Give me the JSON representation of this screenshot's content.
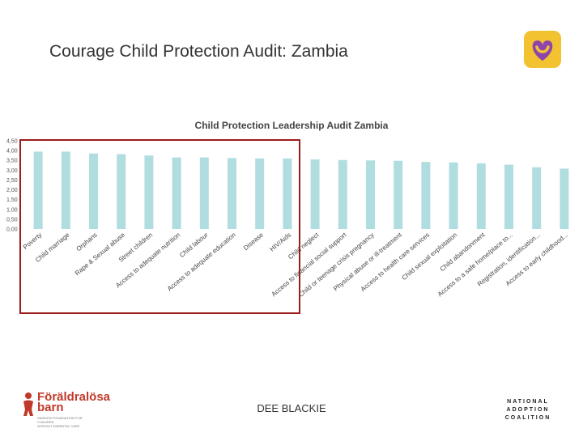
{
  "slide": {
    "title": "Courage Child Protection Audit: Zambia",
    "footer_text": "DEE BLACKIE"
  },
  "logos": {
    "top_right": {
      "icon": "heart-logo-icon",
      "background": "#f2c230",
      "heart_color": "#8e44ad"
    },
    "bottom_left": {
      "name_line1": "Föräldralösa",
      "name_line2": "barn",
      "subtitle": "SWEDISH FOUNDATION FOR CHILDREN\nWITHOUT PARENTAL CARE",
      "color": "#c0392b"
    },
    "bottom_right": {
      "line1": "NATIONAL",
      "line2": "ADOPTION",
      "line3": "COALITION"
    }
  },
  "chart_data": {
    "type": "bar",
    "title": "Child Protection Leadership Audit Zambia",
    "categories": [
      "Poverty",
      "Child marriage",
      "Orphans",
      "Rape & Sexual abuse",
      "Street children",
      "Access to adequate nutrition",
      "Child labour",
      "Access to adequate education",
      "Disease",
      "HIV/Aids",
      "Child neglect",
      "Access to financial social support",
      "Child or teenage crisis pregnancy",
      "Physical abuse or ill-treatment",
      "Access to health care services",
      "Child sexual exploitation",
      "Child abandonment",
      "Access to a safe home/place to...",
      "Registration, identification...",
      "Access to early childhood..."
    ],
    "values": [
      3.95,
      3.95,
      3.85,
      3.82,
      3.75,
      3.65,
      3.65,
      3.62,
      3.6,
      3.6,
      3.55,
      3.52,
      3.5,
      3.48,
      3.42,
      3.4,
      3.35,
      3.28,
      3.15,
      3.08
    ],
    "y_ticks": [
      "0,00",
      "0,50",
      "1,00",
      "1,50",
      "2,00",
      "2,50",
      "3,00",
      "3,50",
      "4,00",
      "4,50"
    ],
    "ylim": [
      0,
      4.5
    ],
    "bar_color": "#b0dde0",
    "highlight": {
      "first_index": 0,
      "last_index": 9,
      "color": "#9b1b1b"
    }
  }
}
